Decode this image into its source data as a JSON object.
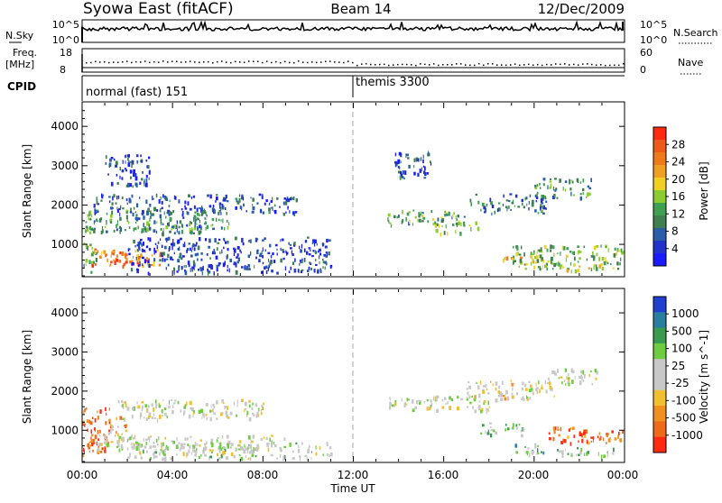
{
  "header": {
    "station": "Syowa East (fitACF)",
    "beam": "Beam 14",
    "date": "12/Dec/2009"
  },
  "sky_panel": {
    "left_label": "N.Sky",
    "left_top_tick": "10^5",
    "left_bottom_tick": "10^0",
    "right_label": "N.Search",
    "right_top_tick": "10^5",
    "right_bottom_tick": "10^0"
  },
  "freq_panel": {
    "left_label_line1": "Freq.",
    "left_label_line2": "[MHz]",
    "left_top_tick": "18",
    "left_bottom_tick": "8",
    "right_label": "Nave",
    "right_top_tick": "60",
    "right_bottom_tick": "0"
  },
  "cpid_panel": {
    "label": "CPID",
    "mode1": "normal (fast) 151",
    "mode2": "themis 3300"
  },
  "x_axis": {
    "ticks": [
      "00:00",
      "04:00",
      "08:00",
      "12:00",
      "16:00",
      "20:00",
      "00:00"
    ],
    "label": "Time UT"
  },
  "chart_data": [
    {
      "type": "heatmap",
      "panel": "power",
      "ylabel": "Slant Range [km]",
      "yticks": [
        "1000",
        "2000",
        "3000",
        "4000"
      ],
      "ylim": [
        200,
        4600
      ],
      "xlim_hours": [
        0,
        24
      ],
      "colorbar": {
        "label": "Power [dB]",
        "ticks": [
          "4",
          "8",
          "12",
          "16",
          "20",
          "24",
          "28"
        ],
        "range": [
          0,
          32
        ],
        "colors": [
          "#1a1aff",
          "#2233cc",
          "#2a5fa8",
          "#3f7f50",
          "#3ea050",
          "#8ccc30",
          "#f0d020",
          "#f0a020",
          "#ef7a1a",
          "#ee5a1a",
          "#ff2a10"
        ]
      },
      "regions": [
        {
          "t0": 0.0,
          "t1": 0.6,
          "r0": 300,
          "r1": 1900,
          "level": 0.4
        },
        {
          "t0": 0.4,
          "t1": 3.5,
          "r0": 450,
          "r1": 900,
          "level": 0.75
        },
        {
          "t0": 1.2,
          "t1": 2.8,
          "r0": 500,
          "r1": 750,
          "level": 0.9
        },
        {
          "t0": 0.5,
          "t1": 5.5,
          "r0": 1300,
          "r1": 1900,
          "level": 0.3
        },
        {
          "t0": 2.0,
          "t1": 6.5,
          "r0": 1400,
          "r1": 1700,
          "level": 0.35
        },
        {
          "t0": 0.5,
          "t1": 9.5,
          "r0": 1800,
          "r1": 2300,
          "level": 0.2
        },
        {
          "t0": 1.0,
          "t1": 3.0,
          "r0": 2500,
          "r1": 3300,
          "level": 0.15
        },
        {
          "t0": 2.0,
          "t1": 11.0,
          "r0": 300,
          "r1": 1200,
          "level": 0.15
        },
        {
          "t0": 13.5,
          "t1": 17.0,
          "r0": 1500,
          "r1": 1900,
          "level": 0.4
        },
        {
          "t0": 15.5,
          "t1": 17.5,
          "r0": 1300,
          "r1": 1600,
          "level": 0.5
        },
        {
          "t0": 17.0,
          "t1": 20.5,
          "r0": 1800,
          "r1": 2300,
          "level": 0.3
        },
        {
          "t0": 13.8,
          "t1": 15.5,
          "r0": 2700,
          "r1": 3400,
          "level": 0.2
        },
        {
          "t0": 20.0,
          "t1": 22.5,
          "r0": 2200,
          "r1": 2700,
          "level": 0.35
        },
        {
          "t0": 19.0,
          "t1": 24.0,
          "r0": 400,
          "r1": 1000,
          "level": 0.45
        },
        {
          "t0": 18.5,
          "t1": 20.0,
          "r0": 550,
          "r1": 700,
          "level": 0.65
        },
        {
          "t0": 21.0,
          "t1": 23.0,
          "r0": 350,
          "r1": 550,
          "level": 0.55
        }
      ]
    },
    {
      "type": "heatmap",
      "panel": "velocity",
      "ylabel": "Slant Range [km]",
      "yticks": [
        "1000",
        "2000",
        "3000",
        "4000"
      ],
      "ylim": [
        200,
        4600
      ],
      "xlim_hours": [
        0,
        24
      ],
      "colorbar": {
        "label": "Velocity [m s^-1]",
        "ticks": [
          "1000",
          "500",
          "100",
          "25",
          "-25",
          "-100",
          "-500",
          "-1000"
        ],
        "colors": [
          "#2040d0",
          "#2a7fa0",
          "#3a9a50",
          "#6ecc40",
          "#c8c8c8",
          "#c8c8c8",
          "#f0c030",
          "#f09020",
          "#ee6a1a",
          "#ff2a10"
        ]
      },
      "regions": [
        {
          "t0": 0.0,
          "t1": 1.2,
          "r0": 400,
          "r1": 1600,
          "level": 0.85
        },
        {
          "t0": 1.0,
          "t1": 2.0,
          "r0": 700,
          "r1": 1400,
          "level": 0.7
        },
        {
          "t0": 0.5,
          "t1": 9.0,
          "r0": 500,
          "r1": 900,
          "level": 0.48
        },
        {
          "t0": 1.5,
          "t1": 8.0,
          "r0": 1300,
          "r1": 1800,
          "level": 0.5
        },
        {
          "t0": 2.0,
          "t1": 11.0,
          "r0": 300,
          "r1": 700,
          "level": 0.45
        },
        {
          "t0": 13.5,
          "t1": 18.0,
          "r0": 1500,
          "r1": 1900,
          "level": 0.5
        },
        {
          "t0": 17.0,
          "t1": 21.0,
          "r0": 1800,
          "r1": 2300,
          "level": 0.55
        },
        {
          "t0": 17.5,
          "t1": 19.5,
          "r0": 900,
          "r1": 1200,
          "level": 0.35
        },
        {
          "t0": 19.0,
          "t1": 20.5,
          "r0": 400,
          "r1": 700,
          "level": 0.3
        },
        {
          "t0": 20.5,
          "t1": 24.0,
          "r0": 700,
          "r1": 1100,
          "level": 0.85
        },
        {
          "t0": 21.0,
          "t1": 23.5,
          "r0": 350,
          "r1": 600,
          "level": 0.4
        },
        {
          "t0": 20.5,
          "t1": 23.0,
          "r0": 2200,
          "r1": 2600,
          "level": 0.5
        }
      ]
    }
  ]
}
